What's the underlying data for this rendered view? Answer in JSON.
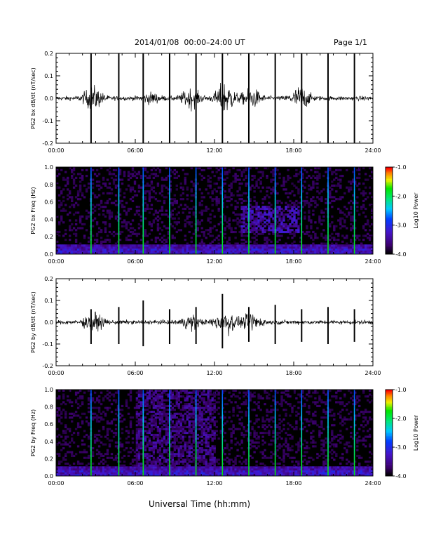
{
  "header": {
    "title": "2014/01/08  00:00–24:00 UT",
    "page": "Page 1/1"
  },
  "footer": {
    "xlabel": "Universal Time (hh:mm)"
  },
  "chart_data": [
    {
      "type": "line",
      "ylabel": "PG2 bx dB/dt (nT/sec)",
      "xlabel": "",
      "xlim": [
        0,
        24
      ],
      "ylim": [
        -0.2,
        0.2
      ],
      "x_ticks": [
        "00:00",
        "06:00",
        "12:00",
        "18:00",
        "24:00"
      ],
      "y_ticks": [
        "-0.2",
        "-0.1",
        "0.0",
        "0.1",
        "0.2"
      ],
      "series": [
        {
          "values": {
            "baseline_amplitude": 0.01,
            "activity_bursts": [
              {
                "t": 2.8,
                "amp": 0.05
              },
              {
                "t": 7.2,
                "amp": 0.02
              },
              {
                "t": 10.2,
                "amp": 0.04
              },
              {
                "t": 12.8,
                "amp": 0.07
              },
              {
                "t": 14.8,
                "amp": 0.04
              },
              {
                "t": 18.5,
                "amp": 0.05
              }
            ],
            "spikes": [
              {
                "t": 2.65,
                "ymin": -0.2,
                "ymax": 0.2
              },
              {
                "t": 4.75,
                "ymin": -0.2,
                "ymax": 0.2
              },
              {
                "t": 6.6,
                "ymin": -0.2,
                "ymax": 0.2
              },
              {
                "t": 8.6,
                "ymin": -0.2,
                "ymax": 0.2
              },
              {
                "t": 10.6,
                "ymin": -0.2,
                "ymax": 0.2
              },
              {
                "t": 12.6,
                "ymin": -0.2,
                "ymax": 0.2
              },
              {
                "t": 14.6,
                "ymin": -0.2,
                "ymax": 0.2
              },
              {
                "t": 16.6,
                "ymin": -0.2,
                "ymax": 0.2
              },
              {
                "t": 18.6,
                "ymin": -0.2,
                "ymax": 0.2
              },
              {
                "t": 20.6,
                "ymin": -0.2,
                "ymax": 0.2
              },
              {
                "t": 22.6,
                "ymin": -0.2,
                "ymax": 0.2
              }
            ]
          }
        }
      ]
    },
    {
      "type": "heatmap",
      "ylabel": "PG2 bx Freq (Hz)",
      "xlabel": "",
      "xlim": [
        0,
        24
      ],
      "ylim": [
        0,
        1.0
      ],
      "x_ticks": [
        "00:00",
        "06:00",
        "12:00",
        "18:00",
        "24:00"
      ],
      "y_ticks": [
        "0.0",
        "0.2",
        "0.4",
        "0.6",
        "0.8",
        "1.0"
      ],
      "colorbar": {
        "label": "Log10 Power",
        "range": [
          -4.0,
          -1.0
        ],
        "ticks": [
          "-1.0",
          "-2.0",
          "-3.0",
          "-4.0"
        ]
      },
      "features": {
        "background_log_power": -4.0,
        "low_frequency_band": {
          "freq_max": 0.06,
          "log_power": -3.3
        },
        "vertical_lines": [
          2.65,
          4.75,
          6.6,
          8.6,
          10.6,
          12.6,
          14.6,
          16.6,
          18.6,
          20.6,
          22.6
        ],
        "elevated_region": {
          "t_start": 14.0,
          "t_end": 18.5,
          "freq_min": 0.25,
          "freq_max": 0.55,
          "log_power": -3.4
        }
      }
    },
    {
      "type": "line",
      "ylabel": "PG2 by dB/dt (nT/sec)",
      "xlabel": "",
      "xlim": [
        0,
        24
      ],
      "ylim": [
        -0.2,
        0.2
      ],
      "x_ticks": [
        "00:00",
        "06:00",
        "12:00",
        "18:00",
        "24:00"
      ],
      "y_ticks": [
        "-0.2",
        "-0.1",
        "0.0",
        "0.1",
        "0.2"
      ],
      "series": [
        {
          "values": {
            "baseline_amplitude": 0.01,
            "activity_bursts": [
              {
                "t": 2.8,
                "amp": 0.04
              },
              {
                "t": 10.2,
                "amp": 0.03
              },
              {
                "t": 12.8,
                "amp": 0.06
              },
              {
                "t": 14.8,
                "amp": 0.04
              }
            ],
            "spikes": [
              {
                "t": 2.65,
                "ymin": -0.1,
                "ymax": 0.06
              },
              {
                "t": 4.75,
                "ymin": -0.1,
                "ymax": 0.07
              },
              {
                "t": 6.6,
                "ymin": -0.11,
                "ymax": 0.1
              },
              {
                "t": 8.6,
                "ymin": -0.1,
                "ymax": 0.06
              },
              {
                "t": 10.6,
                "ymin": -0.1,
                "ymax": 0.07
              },
              {
                "t": 12.6,
                "ymin": -0.12,
                "ymax": 0.13
              },
              {
                "t": 14.6,
                "ymin": -0.09,
                "ymax": 0.07
              },
              {
                "t": 16.6,
                "ymin": -0.1,
                "ymax": 0.08
              },
              {
                "t": 18.6,
                "ymin": -0.09,
                "ymax": 0.06
              },
              {
                "t": 20.6,
                "ymin": -0.1,
                "ymax": 0.07
              },
              {
                "t": 22.6,
                "ymin": -0.09,
                "ymax": 0.06
              }
            ]
          }
        }
      ]
    },
    {
      "type": "heatmap",
      "ylabel": "PG2 by Freq (Hz)",
      "xlabel": "",
      "xlim": [
        0,
        24
      ],
      "ylim": [
        0,
        1.0
      ],
      "x_ticks": [
        "00:00",
        "06:00",
        "12:00",
        "18:00",
        "24:00"
      ],
      "y_ticks": [
        "0.0",
        "0.2",
        "0.4",
        "0.6",
        "0.8",
        "1.0"
      ],
      "colorbar": {
        "label": "Log10 Power",
        "range": [
          -4.0,
          -1.0
        ],
        "ticks": [
          "-1.0",
          "-2.0",
          "-3.0",
          "-4.0"
        ]
      },
      "features": {
        "background_log_power": -4.0,
        "low_frequency_band": {
          "freq_max": 0.06,
          "log_power": -3.3
        },
        "vertical_lines": [
          2.65,
          4.75,
          6.6,
          8.6,
          10.6,
          12.6,
          14.6,
          16.6,
          18.6,
          20.6,
          22.6
        ],
        "elevated_region": {
          "t_start": 6.0,
          "t_end": 12.0,
          "freq_min": 0.0,
          "freq_max": 1.0,
          "log_power": -3.6
        }
      }
    }
  ]
}
